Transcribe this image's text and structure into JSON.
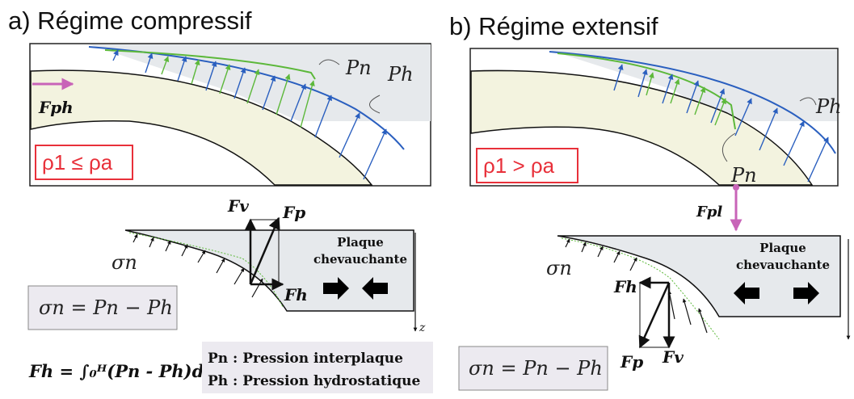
{
  "panel_a": {
    "title": "a) Régime compressif",
    "density_rel": "ρ1 ≤ ρa",
    "label_pn": "Pn",
    "label_ph": "Ph",
    "force_ph": "Fph",
    "plate_label_1": "Plaque",
    "plate_label_2": "chevauchante",
    "sigma": "σn",
    "fv": "Fv",
    "fp": "Fp",
    "fh": "Fh",
    "z": "z",
    "sigma_eq": "σn = Pn − Ph",
    "integral": "Fh = ∫₀ᴴ(Pn - Ph)dz"
  },
  "panel_b": {
    "title": "b) Régime extensif",
    "density_rel": "ρ1 > ρa",
    "label_pn": "Pn",
    "label_ph": "Ph",
    "force_pl": "Fpl",
    "plate_label_1": "Plaque",
    "plate_label_2": "chevauchante",
    "sigma": "σn",
    "fh": "Fh",
    "fp": "Fp",
    "fv": "Fv",
    "sigma_eq": "σn = Pn − Ph"
  },
  "legend": {
    "pn_def": "Pn : Pression interplaque",
    "ph_def": "Ph : Pression hydrostatique"
  },
  "colors": {
    "blue": "#2a5fbf",
    "green": "#5cb83a",
    "magenta": "#c864b8",
    "red": "#e8303a",
    "slab_fill": "#f3f3df",
    "plate_fill": "#e6e9ec",
    "box_fill": "#eceaf0"
  }
}
